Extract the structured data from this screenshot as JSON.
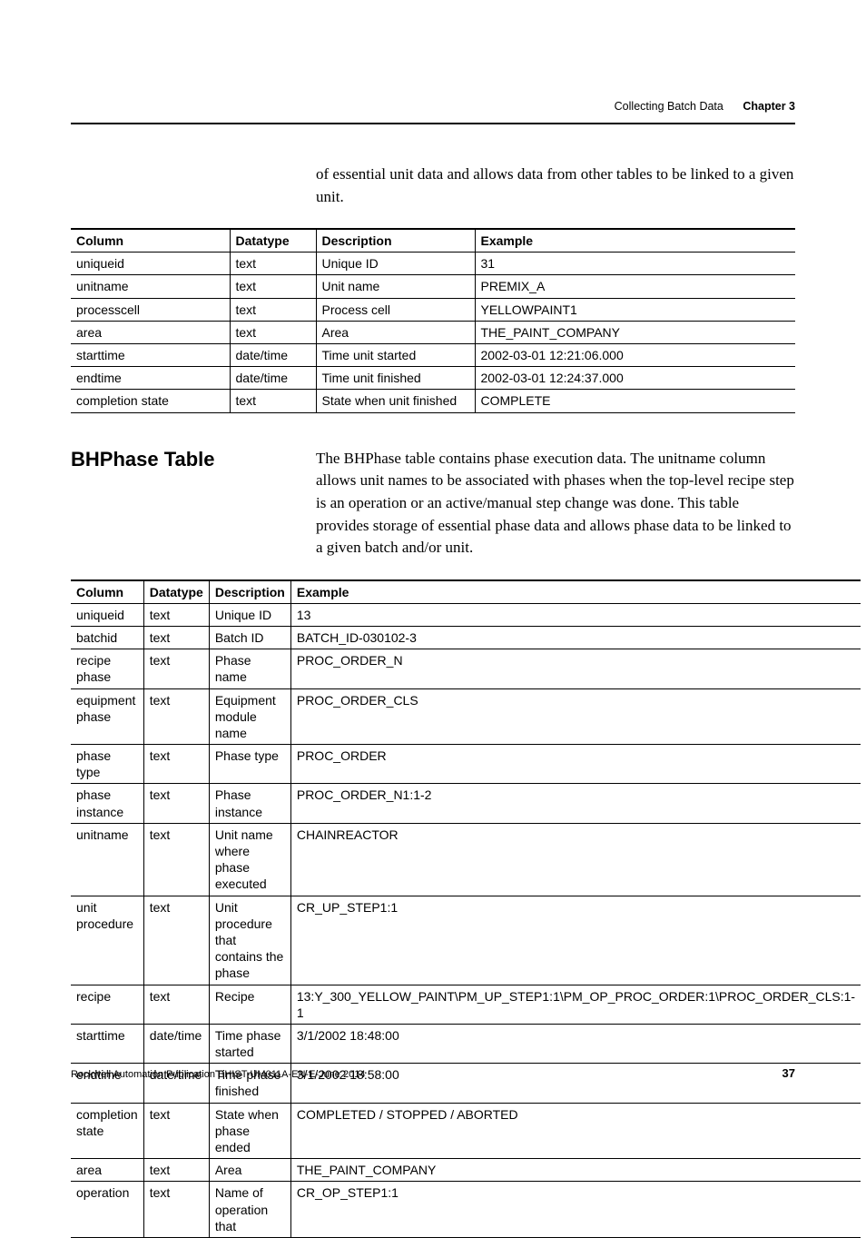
{
  "header": {
    "title": "Collecting Batch Data",
    "chapter": "Chapter 3"
  },
  "intro": "of essential unit data and allows data from other tables to be linked to a given unit.",
  "table1": {
    "headers": [
      "Column",
      "Datatype",
      "Description",
      "Example"
    ],
    "rows": [
      [
        "uniqueid",
        "text",
        "Unique ID",
        "31"
      ],
      [
        "unitname",
        "text",
        "Unit name",
        "PREMIX_A"
      ],
      [
        "processcell",
        "text",
        "Process cell",
        "YELLOWPAINT1"
      ],
      [
        "area",
        "text",
        "Area",
        "THE_PAINT_COMPANY"
      ],
      [
        "starttime",
        "date/time",
        "Time unit started",
        "2002-03-01 12:21:06.000"
      ],
      [
        "endtime",
        "date/time",
        "Time unit finished",
        "2002-03-01 12:24:37.000"
      ],
      [
        "completion state",
        "text",
        "State when unit finished",
        "COMPLETE"
      ]
    ]
  },
  "section2": {
    "heading": "BHPhase Table",
    "para": "The BHPhase table contains phase execution data. The unitname column allows unit names to be associated with phases when the top-level recipe step is an operation or an active/manual step change was done. This table provides storage of essential phase data and allows phase data to be linked to a given batch and/or unit."
  },
  "table2": {
    "headers": [
      "Column",
      "Datatype",
      "Description",
      "Example"
    ],
    "rows": [
      [
        "uniqueid",
        "text",
        "Unique ID",
        "13"
      ],
      [
        "batchid",
        "text",
        "Batch ID",
        "BATCH_ID-030102-3"
      ],
      [
        "recipe phase",
        "text",
        "Phase name",
        "PROC_ORDER_N"
      ],
      [
        "equipment phase",
        "text",
        "Equipment module name",
        "PROC_ORDER_CLS"
      ],
      [
        "phase type",
        "text",
        "Phase type",
        "PROC_ORDER"
      ],
      [
        "phase instance",
        "text",
        "Phase instance",
        "PROC_ORDER_N1:1-2"
      ],
      [
        "unitname",
        "text",
        "Unit name where phase executed",
        "CHAINREACTOR"
      ],
      [
        "unit procedure",
        "text",
        "Unit procedure that contains the phase",
        "CR_UP_STEP1:1"
      ],
      [
        "recipe",
        "text",
        "Recipe",
        "13:Y_300_YELLOW_PAINT\\PM_UP_STEP1:1\\PM_OP_PROC_ORDER:1\\PROC_ORDER_CLS:1-1"
      ],
      [
        "starttime",
        "date/time",
        "Time phase started",
        "3/1/2002 18:48:00"
      ],
      [
        "endtime",
        "date/time",
        "Time phase finished",
        "3/1/2002 18:58:00"
      ],
      [
        "completion state",
        "text",
        "State when phase ended",
        "COMPLETED / STOPPED / ABORTED"
      ],
      [
        "area",
        "text",
        "Area",
        "THE_PAINT_COMPANY"
      ],
      [
        "operation",
        "text",
        "Name of operation that",
        "CR_OP_STEP1:1"
      ]
    ]
  },
  "footer": {
    "pub": "Rockwell Automation Publication BHIST-UM011A-EN-E-June 2014",
    "pagenum": "37"
  }
}
